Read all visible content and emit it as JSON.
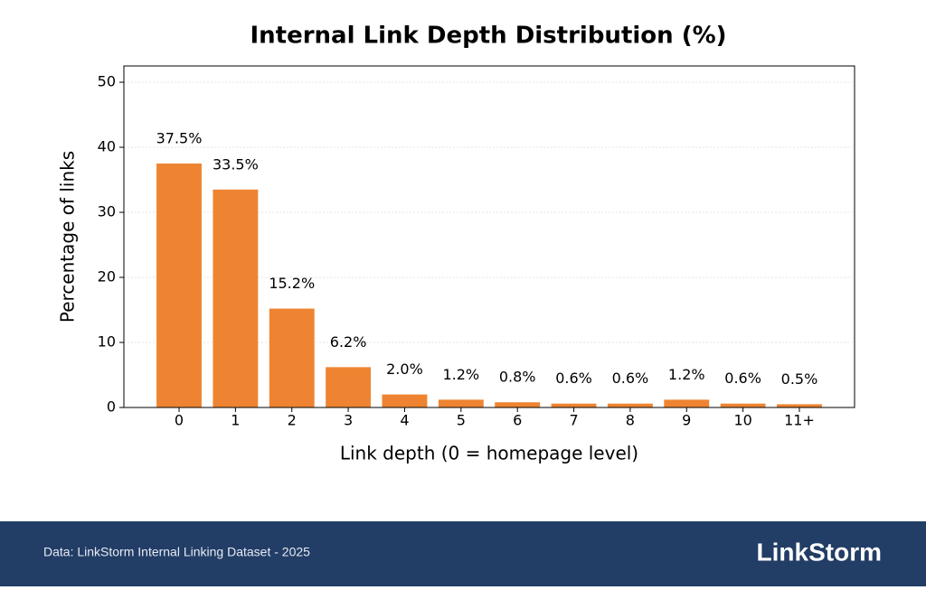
{
  "chart_data": {
    "type": "bar",
    "title": "Internal Link Depth Distribution (%)",
    "x_label": "Link depth (0 = homepage level)",
    "y_label": "Percentage of links",
    "categories": [
      "0",
      "1",
      "2",
      "3",
      "4",
      "5",
      "6",
      "7",
      "8",
      "9",
      "10",
      "11+"
    ],
    "values": [
      37.5,
      33.5,
      15.2,
      6.2,
      2.0,
      1.2,
      0.8,
      0.6,
      0.6,
      1.2,
      0.6,
      0.5
    ],
    "value_labels": [
      "37.5%",
      "33.5%",
      "15.2%",
      "6.2%",
      "2.0%",
      "1.2%",
      "0.8%",
      "0.6%",
      "0.6%",
      "1.2%",
      "0.6%",
      "0.5%"
    ],
    "color": "#ee8431",
    "ylim": [
      0,
      52.5
    ],
    "yticks": [
      0,
      10,
      20,
      30,
      40,
      50
    ],
    "grid": true
  },
  "footer": {
    "source": "Data: LinkStorm Internal Linking Dataset - 2025",
    "logo": "LinkStorm"
  }
}
